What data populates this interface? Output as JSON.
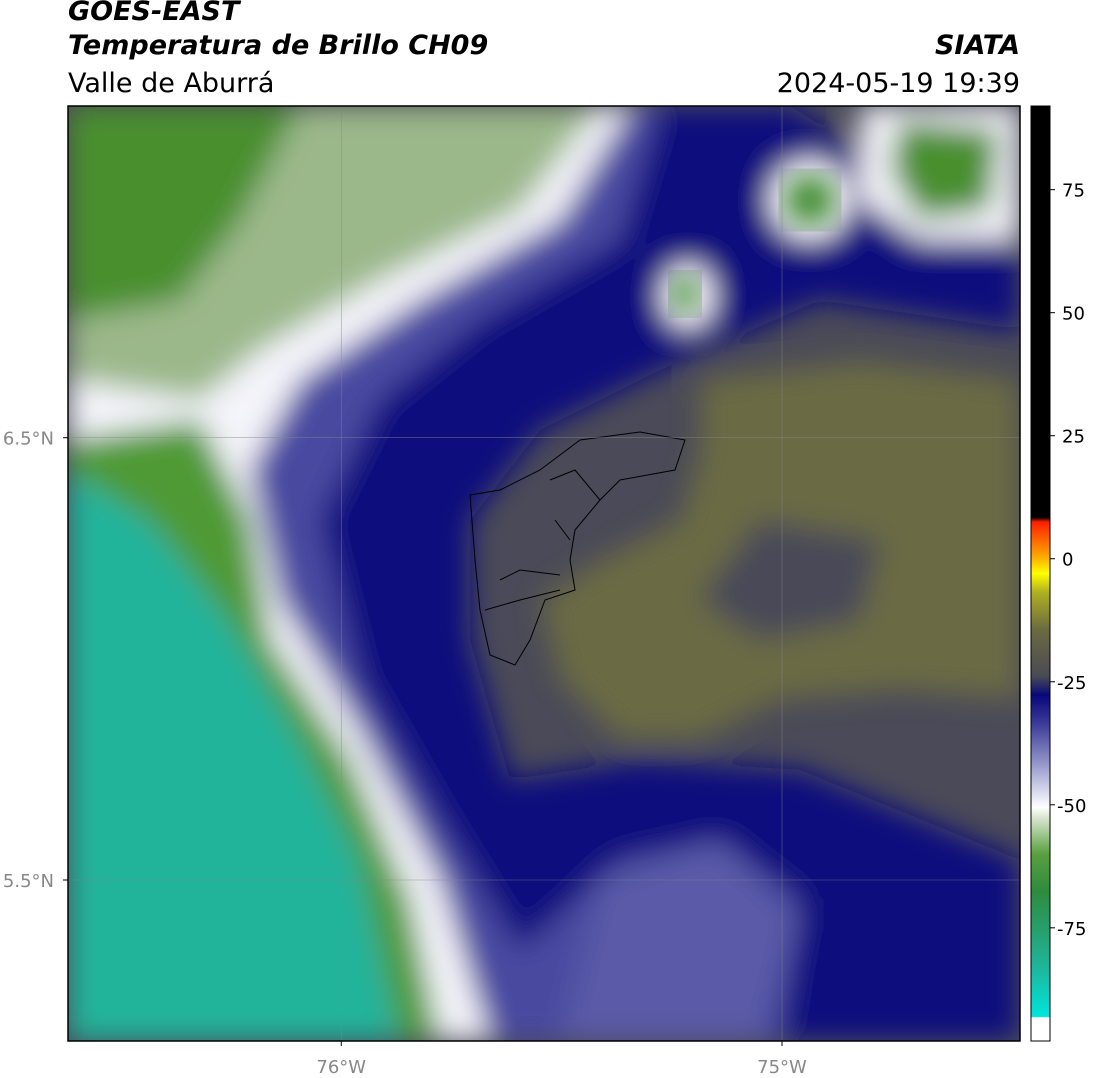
{
  "header": {
    "title": "GOES-EAST",
    "subtitle": "Temperatura de Brillo CH09",
    "region": "Valle de Aburrá",
    "source": "SIATA",
    "datetime": "2024-05-19 19:39"
  },
  "map": {
    "xlim": [
      -76.62,
      -74.46
    ],
    "ylim": [
      5.136,
      7.25
    ],
    "xticks": [
      {
        "value": -76,
        "label": "76°W"
      },
      {
        "value": -75,
        "label": "75°W"
      }
    ],
    "yticks": [
      {
        "value": 6.5,
        "label": "6.5°N"
      },
      {
        "value": 5.5,
        "label": "5.5°N"
      }
    ],
    "grid": true
  },
  "colorbar": {
    "lim": [
      -98,
      92
    ],
    "ticks": [
      75,
      50,
      25,
      0,
      -25,
      -50,
      -75
    ]
  }
}
